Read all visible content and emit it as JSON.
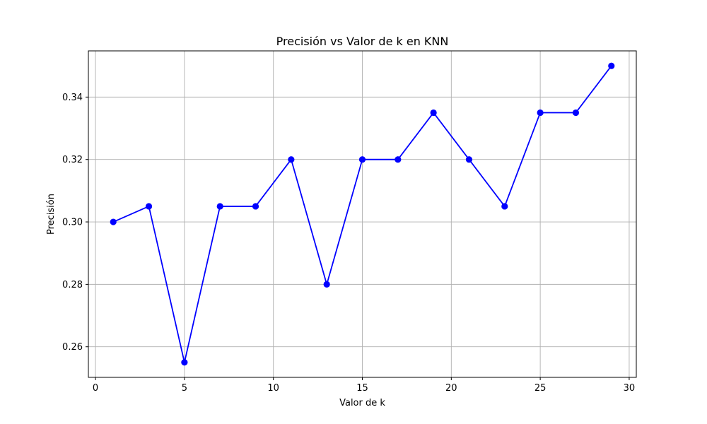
{
  "chart_data": {
    "type": "line",
    "title": "Precisión vs Valor de k en KNN",
    "xlabel": "Valor de k",
    "ylabel": "Precisión",
    "x": [
      1,
      3,
      5,
      7,
      9,
      11,
      13,
      15,
      17,
      19,
      21,
      23,
      25,
      27,
      29
    ],
    "series": [
      {
        "values": [
          0.3,
          0.305,
          0.255,
          0.305,
          0.305,
          0.32,
          0.28,
          0.32,
          0.32,
          0.335,
          0.32,
          0.305,
          0.335,
          0.335,
          0.35
        ],
        "color": "#0000ff",
        "marker": "circle"
      }
    ],
    "xlim": [
      -0.4,
      30.4
    ],
    "ylim": [
      0.2502,
      0.3548
    ],
    "xticks": [
      0,
      5,
      10,
      15,
      20,
      25,
      30
    ],
    "yticks": [
      0.26,
      0.28,
      0.3,
      0.32,
      0.34
    ],
    "ytick_labels": [
      "0.26",
      "0.28",
      "0.30",
      "0.32",
      "0.34"
    ],
    "grid": true,
    "grid_color": "#b0b0b0",
    "axis_color": "#000000"
  }
}
